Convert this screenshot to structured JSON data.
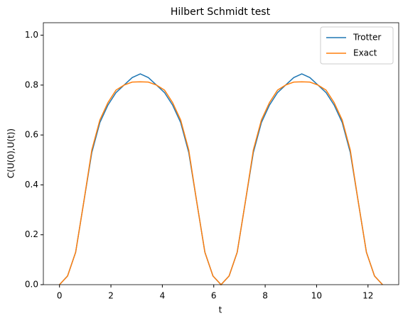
{
  "chart_data": {
    "type": "line",
    "title": "Hilbert Schmidt test",
    "xlabel": "t",
    "ylabel": "C(U(0),U(t))",
    "x": [
      0,
      0.314,
      0.628,
      0.942,
      1.257,
      1.571,
      1.885,
      2.199,
      2.513,
      2.827,
      3.142,
      3.456,
      3.77,
      4.084,
      4.398,
      4.712,
      5.027,
      5.341,
      5.655,
      5.969,
      6.283,
      6.597,
      6.912,
      7.226,
      7.54,
      7.854,
      8.168,
      8.482,
      8.796,
      9.111,
      9.425,
      9.739,
      10.053,
      10.367,
      10.681,
      10.996,
      11.31,
      11.624,
      11.938,
      12.252,
      12.566
    ],
    "series": [
      {
        "name": "Trotter",
        "color": "#1f77b4",
        "values": [
          0,
          0.035,
          0.13,
          0.33,
          0.53,
          0.65,
          0.72,
          0.77,
          0.8,
          0.83,
          0.845,
          0.83,
          0.8,
          0.77,
          0.72,
          0.65,
          0.53,
          0.33,
          0.13,
          0.035,
          0,
          0.035,
          0.13,
          0.33,
          0.53,
          0.65,
          0.72,
          0.77,
          0.8,
          0.83,
          0.845,
          0.83,
          0.8,
          0.77,
          0.72,
          0.65,
          0.53,
          0.33,
          0.13,
          0.035,
          0
        ]
      },
      {
        "name": "Exact",
        "color": "#ff7f0e",
        "values": [
          0,
          0.035,
          0.13,
          0.33,
          0.54,
          0.66,
          0.73,
          0.78,
          0.8,
          0.812,
          0.813,
          0.812,
          0.8,
          0.78,
          0.73,
          0.66,
          0.54,
          0.33,
          0.13,
          0.035,
          0,
          0.035,
          0.13,
          0.33,
          0.54,
          0.66,
          0.73,
          0.78,
          0.8,
          0.812,
          0.813,
          0.812,
          0.8,
          0.78,
          0.73,
          0.66,
          0.54,
          0.33,
          0.13,
          0.035,
          0
        ]
      }
    ],
    "xlim": [
      -0.628,
      13.195
    ],
    "ylim": [
      0,
      1.05
    ],
    "xticks": [
      0,
      2,
      4,
      6,
      8,
      10,
      12
    ],
    "yticks": [
      {
        "value": 0,
        "label": "0.0"
      },
      {
        "value": 0.2,
        "label": "0.2"
      },
      {
        "value": 0.4,
        "label": "0.4"
      },
      {
        "value": 0.6,
        "label": "0.6"
      },
      {
        "value": 0.8,
        "label": "0.8"
      },
      {
        "value": 1.0,
        "label": "1.0"
      }
    ],
    "legend": "upper right"
  }
}
